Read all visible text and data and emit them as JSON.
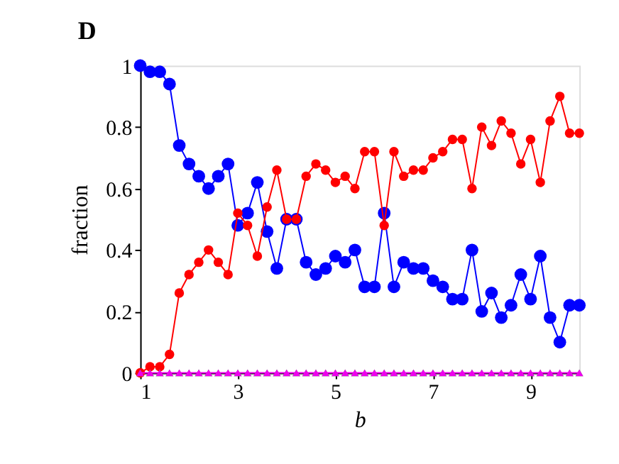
{
  "chart_data": {
    "type": "line",
    "title": "D",
    "xlabel": "b",
    "ylabel": "fraction",
    "x": [
      1,
      1.2,
      1.4,
      1.6,
      1.8,
      2,
      2.2,
      2.4,
      2.6,
      2.8,
      3,
      3.2,
      3.4,
      3.6,
      3.8,
      4,
      4.2,
      4.4,
      4.6,
      4.8,
      5,
      5.2,
      5.4,
      5.6,
      5.8,
      6,
      6.2,
      6.4,
      6.6,
      6.8,
      7,
      7.2,
      7.4,
      7.6,
      7.8,
      8,
      8.2,
      8.4,
      8.6,
      8.8,
      9,
      9.2,
      9.4,
      9.6,
      9.8,
      10
    ],
    "series": [
      {
        "color": "#0000ff",
        "marker": "circle",
        "values": [
          1,
          0.98,
          0.98,
          0.94,
          0.74,
          0.68,
          0.64,
          0.6,
          0.64,
          0.68,
          0.48,
          0.52,
          0.62,
          0.46,
          0.34,
          0.5,
          0.5,
          0.36,
          0.32,
          0.34,
          0.38,
          0.36,
          0.4,
          0.28,
          0.28,
          0.52,
          0.28,
          0.36,
          0.34,
          0.34,
          0.3,
          0.28,
          0.24,
          0.24,
          0.4,
          0.2,
          0.26,
          0.18,
          0.22,
          0.32,
          0.24,
          0.38,
          0.18,
          0.1,
          0.22,
          0.22
        ]
      },
      {
        "color": "#ff0000",
        "marker": "circle",
        "values": [
          0,
          0.02,
          0.02,
          0.06,
          0.26,
          0.32,
          0.36,
          0.4,
          0.36,
          0.32,
          0.52,
          0.48,
          0.38,
          0.54,
          0.66,
          0.5,
          0.5,
          0.64,
          0.68,
          0.66,
          0.62,
          0.64,
          0.6,
          0.72,
          0.72,
          0.48,
          0.72,
          0.64,
          0.66,
          0.66,
          0.7,
          0.72,
          0.76,
          0.76,
          0.6,
          0.8,
          0.74,
          0.82,
          0.78,
          0.68,
          0.76,
          0.62,
          0.82,
          0.9,
          0.78,
          0.78
        ]
      },
      {
        "type": "scatter",
        "color": "#33cc33",
        "marker": "triangle",
        "values": [
          0,
          0,
          0,
          0,
          0,
          0,
          0,
          0,
          0,
          0,
          0,
          0,
          0,
          0,
          0,
          0,
          0,
          0,
          0,
          0,
          0,
          0,
          0,
          0,
          0,
          0,
          0,
          0,
          0,
          0,
          0,
          0,
          0,
          0,
          0,
          0,
          0,
          0,
          0,
          0,
          0,
          0,
          0,
          0,
          0,
          0
        ]
      },
      {
        "color": "#ee00ee",
        "marker": "triangle",
        "values": [
          0,
          0,
          0,
          0,
          0,
          0,
          0,
          0,
          0,
          0,
          0,
          0,
          0,
          0,
          0,
          0,
          0,
          0,
          0,
          0,
          0,
          0,
          0,
          0,
          0,
          0,
          0,
          0,
          0,
          0,
          0,
          0,
          0,
          0,
          0,
          0,
          0,
          0,
          0,
          0,
          0,
          0,
          0,
          0,
          0,
          0
        ]
      }
    ],
    "xlim": [
      1,
      10
    ],
    "xticks": [
      1,
      3,
      5,
      7,
      9
    ],
    "ylim": [
      0,
      1
    ],
    "yticks": [
      0,
      0.2,
      0.4,
      0.6,
      0.8,
      1
    ]
  }
}
